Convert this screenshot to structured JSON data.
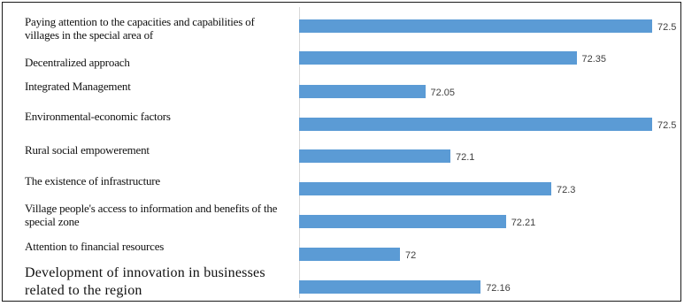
{
  "chart_data": {
    "type": "bar",
    "orientation": "horizontal",
    "categories": [
      "Paying attention to the capacities and capabilities of villages in the special area of",
      "Decentralized approach",
      "Integrated Management",
      "Environmental-economic factors",
      "Rural social empowerement",
      "The existence of infrastructure",
      "Village people's access to information and benefits of the special zone",
      "Attention to financial resources",
      "Development of innovation in businesses related to the region"
    ],
    "values": [
      72.5,
      72.35,
      72.05,
      72.5,
      72.1,
      72.3,
      72.21,
      72,
      72.16
    ],
    "value_labels": [
      "72.5",
      "72.35",
      "72.05",
      "72.5",
      "72.1",
      "72.3",
      "72.21",
      "72",
      "72.16"
    ],
    "xlim": [
      71.8,
      72.5
    ],
    "bar_color": "#5b9bd5",
    "grid": false,
    "legend": "none",
    "title": "",
    "xlabel": "",
    "ylabel": ""
  }
}
